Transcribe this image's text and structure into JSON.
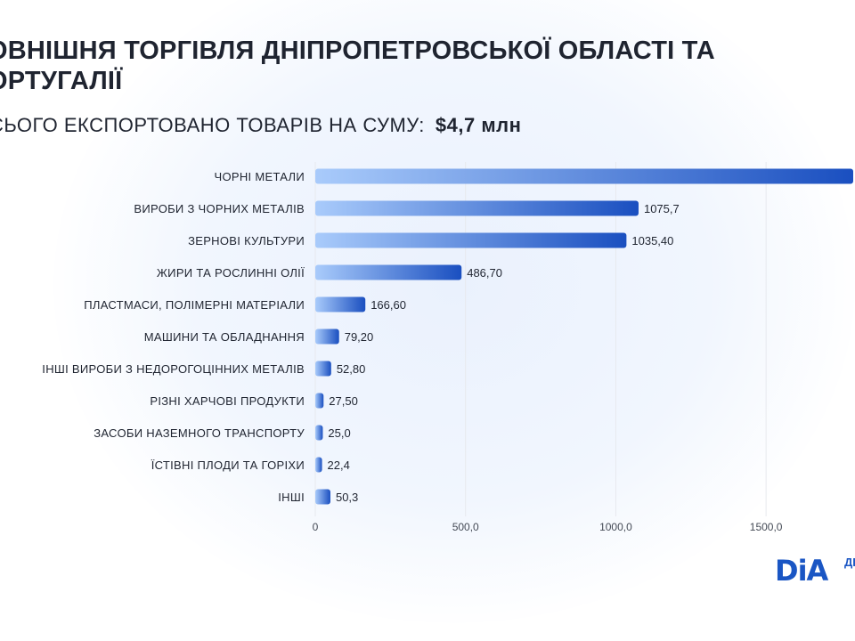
{
  "header": {
    "title": "ОВНІШНЯ ТОРГІВЛЯ ДНІПРОПЕТРОВСЬКОЇ ОБЛАСТІ ТА ОРТУГАЛІЇ",
    "subtitle_label": "СЬОГО ЕКСПОРТОВАНО ТОВАРІВ НА СУМУ:",
    "subtitle_amount": "$4,7 млн"
  },
  "logo": {
    "text": "DiA",
    "side_text": "ДІ"
  },
  "colors": {
    "bar_light": "#a9cbfb",
    "bar_dark": "#1a4fc0",
    "grid": "#e7e9ee"
  },
  "chart_data": {
    "type": "bar",
    "orientation": "horizontal",
    "categories": [
      "ЧОРНІ МЕТАЛИ",
      "ВИРОБИ З ЧОРНИХ МЕТАЛІВ",
      "ЗЕРНОВІ КУЛЬТУРИ",
      "ЖИРИ ТА РОСЛИННІ ОЛІЇ",
      "ПЛАСТМАСИ, ПОЛІМЕРНІ МАТЕРІАЛИ",
      "МАШИНИ ТА ОБЛАДНАННЯ",
      "ІНШІ ВИРОБИ З НЕДОРОГОЦІННИХ МЕТАЛІВ",
      "РІЗНІ ХАРЧОВІ ПРОДУКТИ",
      "ЗАСОБИ НАЗЕМНОГО ТРАНСПОРТУ",
      "ЇСТІВНІ ПЛОДИ ТА ГОРІХИ",
      "ІНШІ"
    ],
    "values": [
      1790,
      1075.7,
      1035.4,
      486.7,
      166.6,
      79.2,
      52.8,
      27.5,
      25.0,
      22.4,
      50.3
    ],
    "value_labels": [
      "",
      "1075,7",
      "1035,40",
      "486,70",
      "166,60",
      "79,20",
      "52,80",
      "27,50",
      "25,0",
      "22,4",
      "50,3"
    ],
    "xticks": [
      0,
      500,
      1000,
      1500
    ],
    "xtick_labels": [
      "0",
      "500,0",
      "1000,0",
      "1500,0"
    ],
    "xlim": [
      0,
      1790
    ],
    "grid": true
  }
}
